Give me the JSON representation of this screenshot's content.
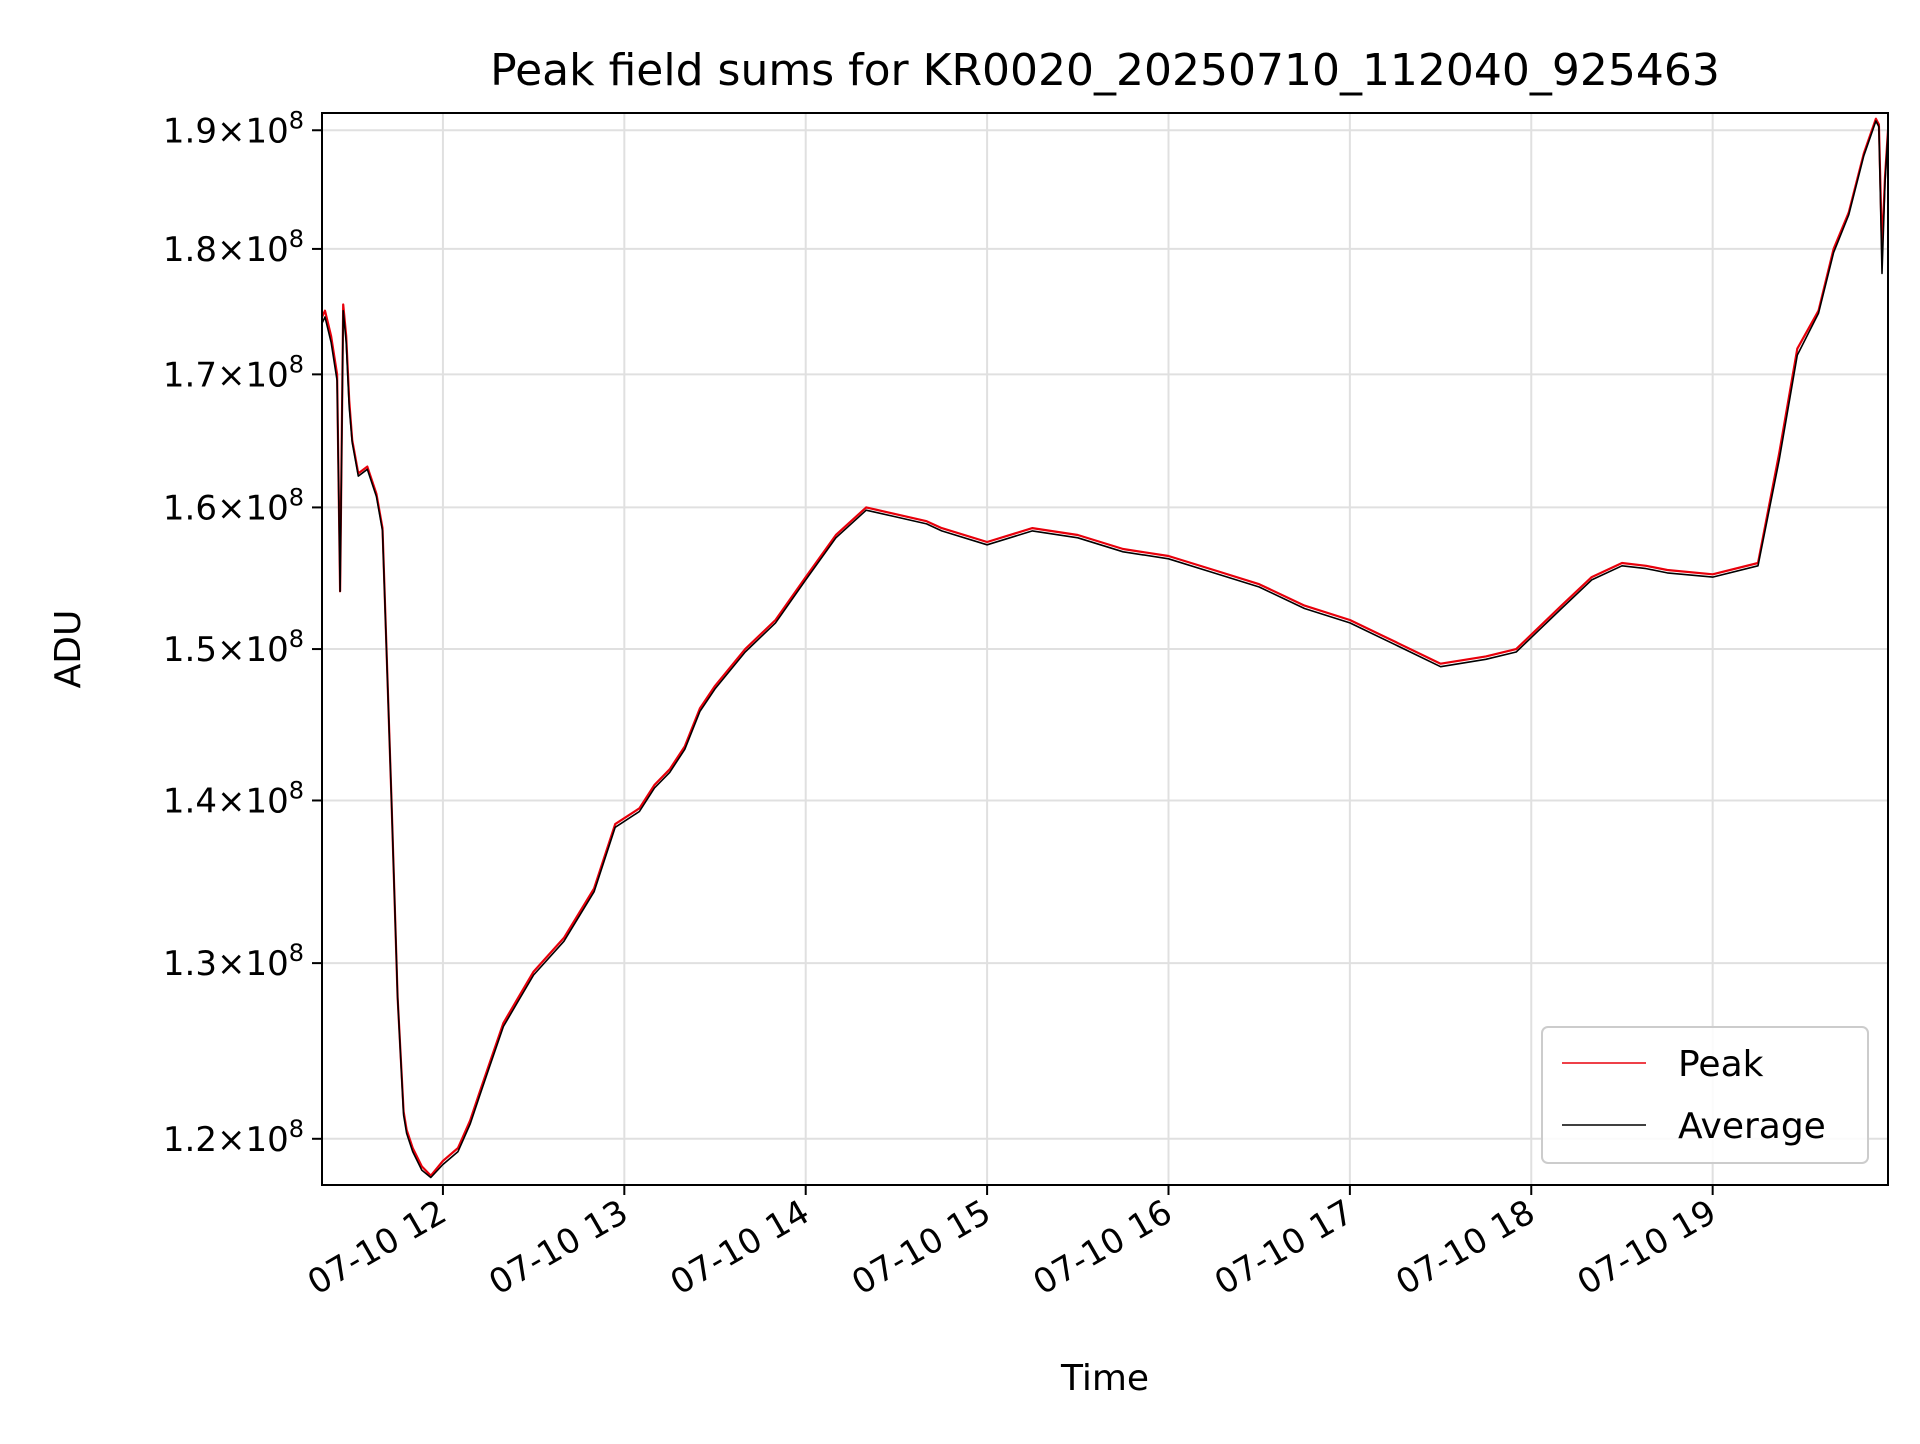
{
  "chart_data": {
    "type": "line",
    "title": "Peak field sums for KR0020_20250710_112040_925463",
    "xlabel": "Time",
    "ylabel": "ADU",
    "y_scale": "log",
    "xlim": [
      "2025-07-10T11:20",
      "2025-07-10T19:58"
    ],
    "ylim": [
      117500000,
      191500000
    ],
    "grid": true,
    "legend_placement": "lower right",
    "x_ticks": [
      {
        "value": "2025-07-10T12:00",
        "label": "07-10 12"
      },
      {
        "value": "2025-07-10T13:00",
        "label": "07-10 13"
      },
      {
        "value": "2025-07-10T14:00",
        "label": "07-10 14"
      },
      {
        "value": "2025-07-10T15:00",
        "label": "07-10 15"
      },
      {
        "value": "2025-07-10T16:00",
        "label": "07-10 16"
      },
      {
        "value": "2025-07-10T17:00",
        "label": "07-10 17"
      },
      {
        "value": "2025-07-10T18:00",
        "label": "07-10 18"
      },
      {
        "value": "2025-07-10T19:00",
        "label": "07-10 19"
      }
    ],
    "y_ticks": [
      {
        "value": 120000000,
        "mantissa": "1.2",
        "base": "10",
        "exp": "8"
      },
      {
        "value": 130000000,
        "mantissa": "1.3",
        "base": "10",
        "exp": "8"
      },
      {
        "value": 140000000,
        "mantissa": "1.4",
        "base": "10",
        "exp": "8"
      },
      {
        "value": 150000000,
        "mantissa": "1.5",
        "base": "10",
        "exp": "8"
      },
      {
        "value": 160000000,
        "mantissa": "1.6",
        "base": "10",
        "exp": "8"
      },
      {
        "value": 170000000,
        "mantissa": "1.7",
        "base": "10",
        "exp": "8"
      },
      {
        "value": 180000000,
        "mantissa": "1.8",
        "base": "10",
        "exp": "8"
      },
      {
        "value": 190000000,
        "mantissa": "1.9",
        "base": "10",
        "exp": "8"
      }
    ],
    "x": [
      "2025-07-10T11:20",
      "2025-07-10T11:21",
      "2025-07-10T11:23",
      "2025-07-10T11:25",
      "2025-07-10T11:26",
      "2025-07-10T11:27",
      "2025-07-10T11:28",
      "2025-07-10T11:29",
      "2025-07-10T11:30",
      "2025-07-10T11:32",
      "2025-07-10T11:35",
      "2025-07-10T11:38",
      "2025-07-10T11:40",
      "2025-07-10T11:43",
      "2025-07-10T11:45",
      "2025-07-10T11:47",
      "2025-07-10T11:48",
      "2025-07-10T11:50",
      "2025-07-10T11:53",
      "2025-07-10T11:56",
      "2025-07-10T12:00",
      "2025-07-10T12:05",
      "2025-07-10T12:09",
      "2025-07-10T12:12",
      "2025-07-10T12:15",
      "2025-07-10T12:20",
      "2025-07-10T12:25",
      "2025-07-10T12:30",
      "2025-07-10T12:40",
      "2025-07-10T12:50",
      "2025-07-10T12:57",
      "2025-07-10T13:05",
      "2025-07-10T13:10",
      "2025-07-10T13:15",
      "2025-07-10T13:20",
      "2025-07-10T13:25",
      "2025-07-10T13:30",
      "2025-07-10T13:40",
      "2025-07-10T13:50",
      "2025-07-10T14:00",
      "2025-07-10T14:10",
      "2025-07-10T14:20",
      "2025-07-10T14:30",
      "2025-07-10T14:40",
      "2025-07-10T14:45",
      "2025-07-10T15:00",
      "2025-07-10T15:15",
      "2025-07-10T15:30",
      "2025-07-10T15:45",
      "2025-07-10T16:00",
      "2025-07-10T16:15",
      "2025-07-10T16:30",
      "2025-07-10T16:45",
      "2025-07-10T17:00",
      "2025-07-10T17:15",
      "2025-07-10T17:30",
      "2025-07-10T17:45",
      "2025-07-10T17:55",
      "2025-07-10T18:10",
      "2025-07-10T18:20",
      "2025-07-10T18:30",
      "2025-07-10T18:38",
      "2025-07-10T18:45",
      "2025-07-10T19:00",
      "2025-07-10T19:15",
      "2025-07-10T19:22",
      "2025-07-10T19:28",
      "2025-07-10T19:35",
      "2025-07-10T19:40",
      "2025-07-10T19:45",
      "2025-07-10T19:50",
      "2025-07-10T19:54",
      "2025-07-10T19:55",
      "2025-07-10T19:56",
      "2025-07-10T19:57",
      "2025-07-10T19:58"
    ],
    "series": [
      {
        "name": "Peak",
        "color": "#e8000b",
        "values": [
          174500000,
          175000000,
          173000000,
          170000000,
          154000000,
          175500000,
          173000000,
          168000000,
          165000000,
          162500000,
          163000000,
          161000000,
          158500000,
          140000000,
          128000000,
          121500000,
          120500000,
          119500000,
          118500000,
          118000000,
          118800000,
          119500000,
          121000000,
          122500000,
          124000000,
          126500000,
          128000000,
          129500000,
          131500000,
          134500000,
          138500000,
          139500000,
          141000000,
          142000000,
          143500000,
          146000000,
          147500000,
          150000000,
          152000000,
          155000000,
          158000000,
          160000000,
          159500000,
          159000000,
          158500000,
          157500000,
          158500000,
          158000000,
          157000000,
          156500000,
          155500000,
          154500000,
          153000000,
          152000000,
          150500000,
          149000000,
          149500000,
          150000000,
          153000000,
          155000000,
          156000000,
          155800000,
          155500000,
          155200000,
          156000000,
          164000000,
          172000000,
          175000000,
          180000000,
          183000000,
          188000000,
          191000000,
          190500000,
          180000000,
          186000000,
          190000000
        ]
      },
      {
        "name": "Average",
        "color": "#000000",
        "values": [
          174000000,
          174500000,
          172500000,
          169500000,
          154000000,
          175000000,
          172500000,
          167500000,
          164800000,
          162300000,
          162800000,
          160800000,
          158300000,
          140000000,
          128000000,
          121300000,
          120300000,
          119300000,
          118300000,
          117900000,
          118600000,
          119300000,
          120800000,
          122300000,
          123800000,
          126300000,
          127800000,
          129300000,
          131300000,
          134300000,
          138300000,
          139300000,
          140800000,
          141800000,
          143300000,
          145800000,
          147300000,
          149800000,
          151800000,
          154800000,
          157800000,
          159800000,
          159300000,
          158800000,
          158300000,
          157300000,
          158300000,
          157800000,
          156800000,
          156300000,
          155300000,
          154300000,
          152800000,
          151800000,
          150300000,
          148800000,
          149300000,
          149800000,
          152800000,
          154800000,
          155800000,
          155600000,
          155300000,
          155000000,
          155800000,
          163500000,
          171500000,
          174800000,
          179700000,
          182800000,
          187800000,
          190800000,
          190300000,
          178000000,
          185500000,
          189800000
        ]
      }
    ]
  }
}
